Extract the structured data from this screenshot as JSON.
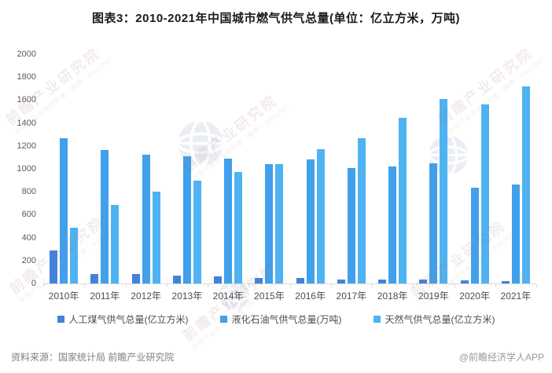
{
  "chart_data": {
    "type": "bar",
    "title": "图表3：2010-2021年中国城市燃气供气总量(单位：亿立方米，万吨)",
    "categories": [
      "2010年",
      "2011年",
      "2012年",
      "2013年",
      "2014年",
      "2015年",
      "2016年",
      "2017年",
      "2018年",
      "2019年",
      "2020年",
      "2021年"
    ],
    "series": [
      {
        "name": "人工煤气供气总量(亿立方米)",
        "color": "#4183DB",
        "values": [
          290,
          85,
          79,
          66,
          59,
          49,
          45,
          34,
          32,
          33,
          26,
          24
        ]
      },
      {
        "name": "液化石油气供气总量(万吨)",
        "color": "#41A0EC",
        "values": [
          1270,
          1166,
          1121,
          1113,
          1089,
          1043,
          1082,
          1005,
          1024,
          1045,
          837,
          866
        ]
      },
      {
        "name": "天然气供气总量(亿立方米)",
        "color": "#4FB2F2",
        "values": [
          488,
          685,
          800,
          900,
          970,
          1041,
          1172,
          1264,
          1444,
          1608,
          1564,
          1722
        ]
      }
    ],
    "ylim": [
      0,
      2000
    ],
    "ytick_step": 200,
    "grid": false,
    "legend_position": "bottom"
  },
  "footer": {
    "source": "资料来源：国家统计局 前瞻产业研究院",
    "credit": "@前瞻经济学人APP"
  },
  "watermark": {
    "brand": "前瞻产业研究院",
    "tagline": "中国产业咨询领导者（股票：839599）"
  }
}
